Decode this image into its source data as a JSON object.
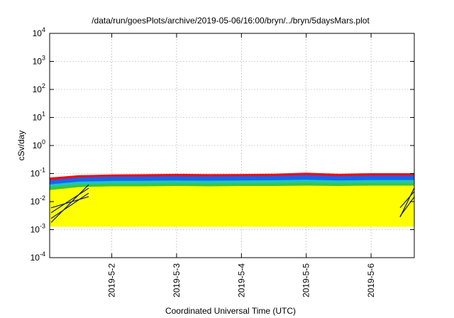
{
  "chart_data": {
    "type": "area",
    "title": "/data/run/goesPlots/archive/2019-05-06/16:00/bryn/../bryn/5daysMars.plot",
    "xlabel": "Coordinated Universal Time (UTC)",
    "ylabel": "cSv/day",
    "yscale": "log",
    "ylim": [
      0.0001,
      10000
    ],
    "xlim": [
      "2019-05-01T01:00",
      "2019-05-06T16:00"
    ],
    "grid": true,
    "y_ticks": [
      {
        "base": "10",
        "exp": "-4",
        "value": 0.0001
      },
      {
        "base": "10",
        "exp": "-3",
        "value": 0.001
      },
      {
        "base": "10",
        "exp": "-2",
        "value": 0.01
      },
      {
        "base": "10",
        "exp": "-1",
        "value": 0.1
      },
      {
        "base": "10",
        "exp": "0",
        "value": 1
      },
      {
        "base": "10",
        "exp": "1",
        "value": 10
      },
      {
        "base": "10",
        "exp": "2",
        "value": 100
      },
      {
        "base": "10",
        "exp": "3",
        "value": 1000
      },
      {
        "base": "10",
        "exp": "4",
        "value": 10000
      }
    ],
    "x_ticks": [
      {
        "label": "2019-5-2",
        "value": "2019-05-02T00:00"
      },
      {
        "label": "2019-5-3",
        "value": "2019-05-03T00:00"
      },
      {
        "label": "2019-5-4",
        "value": "2019-05-04T00:00"
      },
      {
        "label": "2019-5-5",
        "value": "2019-05-05T00:00"
      },
      {
        "label": "2019-5-6",
        "value": "2019-05-06T00:00"
      }
    ],
    "x": [
      "2019-05-01T01:00",
      "2019-05-01T12:00",
      "2019-05-02T00:00",
      "2019-05-02T12:00",
      "2019-05-03T00:00",
      "2019-05-03T12:00",
      "2019-05-04T00:00",
      "2019-05-04T12:00",
      "2019-05-05T00:00",
      "2019-05-05T12:00",
      "2019-05-06T00:00",
      "2019-05-06T12:00"
    ],
    "series": [
      {
        "color": "#e8101c",
        "values": [
          0.07,
          0.085,
          0.09,
          0.092,
          0.095,
          0.093,
          0.094,
          0.096,
          0.105,
          0.095,
          0.1,
          0.1
        ]
      },
      {
        "color": "#1a63f0",
        "values": [
          0.055,
          0.07,
          0.075,
          0.076,
          0.078,
          0.077,
          0.078,
          0.079,
          0.085,
          0.078,
          0.082,
          0.082
        ]
      },
      {
        "color": "#19c7c0",
        "values": [
          0.04,
          0.05,
          0.053,
          0.054,
          0.055,
          0.054,
          0.055,
          0.056,
          0.058,
          0.055,
          0.057,
          0.057
        ]
      },
      {
        "color": "#3cc43c",
        "values": [
          0.032,
          0.04,
          0.042,
          0.043,
          0.044,
          0.043,
          0.044,
          0.044,
          0.046,
          0.044,
          0.045,
          0.045
        ]
      },
      {
        "color": "#ffff00",
        "values": [
          0.025,
          0.032,
          0.034,
          0.034,
          0.035,
          0.034,
          0.035,
          0.035,
          0.036,
          0.035,
          0.036,
          0.036
        ]
      }
    ],
    "lower_bound": [
      0.0013,
      0.0013,
      0.0013,
      0.0013,
      0.0013,
      0.0013,
      0.0013,
      0.0013,
      0.0013,
      0.0013,
      0.0013,
      0.0013
    ]
  }
}
